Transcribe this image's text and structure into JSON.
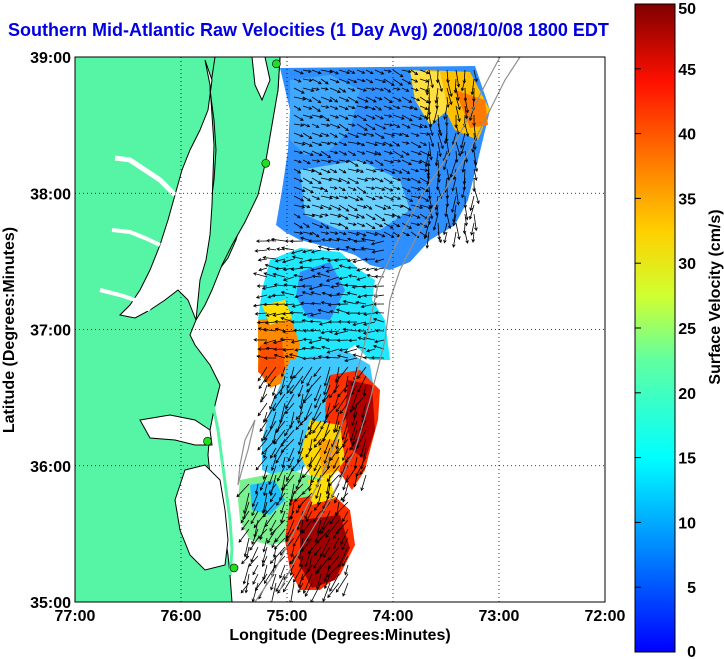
{
  "title": "Southern Mid-Atlantic Raw Velocities (1 Day Avg) 2008/10/08 1800 EDT",
  "map": {
    "xlabel": "Longitude (Degrees:Minutes)",
    "ylabel": "Latitude (Degrees:Minutes)",
    "x_ticks": [
      "77:00",
      "76:00",
      "75:00",
      "74:00",
      "73:00",
      "72:00"
    ],
    "y_ticks": [
      "39:00",
      "38:00",
      "37:00",
      "36:00",
      "35:00"
    ],
    "lon_range": [
      -77,
      -72
    ],
    "lat_range": [
      35,
      39
    ],
    "land_color": "#55f5a5",
    "grid": "dotted"
  },
  "colorbar": {
    "label": "Surface Velocity (cm/s)",
    "ticks": [
      "0",
      "5",
      "10",
      "15",
      "20",
      "25",
      "30",
      "35",
      "40",
      "45",
      "50"
    ],
    "range": [
      0,
      50
    ],
    "colormap": "jet"
  },
  "stations": [
    {
      "lon": -75.1,
      "lat": 38.95
    },
    {
      "lon": -75.2,
      "lat": 38.22
    },
    {
      "lon": -75.75,
      "lat": 36.18
    },
    {
      "lon": -75.5,
      "lat": 35.25
    }
  ]
}
